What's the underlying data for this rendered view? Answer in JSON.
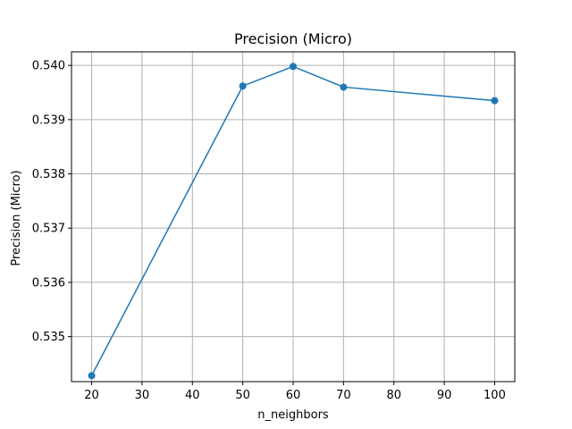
{
  "chart_data": {
    "type": "line",
    "title": "Precision (Micro)",
    "xlabel": "n_neighbors",
    "ylabel": "Precision (Micro)",
    "xlim": [
      16.0,
      104.0
    ],
    "ylim": [
      0.53417,
      0.54025
    ],
    "x_ticks": [
      20,
      30,
      40,
      50,
      60,
      70,
      80,
      90,
      100
    ],
    "y_ticks": [
      0.535,
      0.536,
      0.537,
      0.538,
      0.539,
      0.54
    ],
    "y_tick_labels": [
      "0.535",
      "0.536",
      "0.537",
      "0.538",
      "0.539",
      "0.540"
    ],
    "grid": true,
    "series": [
      {
        "color": "#1f77b4",
        "marker": "circle",
        "x": [
          20,
          50,
          60,
          70,
          100
        ],
        "y": [
          0.53428,
          0.53962,
          0.53998,
          0.5396,
          0.53935
        ]
      }
    ]
  }
}
